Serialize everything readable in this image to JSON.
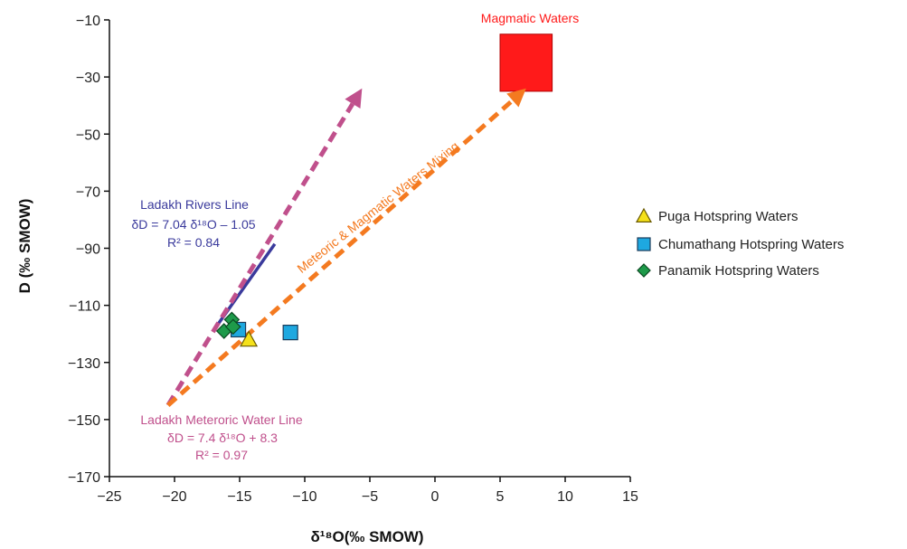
{
  "chart_data": {
    "type": "scatter",
    "xlabel": "δ¹⁸O(‰ SMOW)",
    "ylabel": "D (‰ SMOW)",
    "xlim": [
      -25,
      15
    ],
    "ylim": [
      -170,
      -10
    ],
    "xticks": [
      -25,
      -20,
      -15,
      -10,
      -5,
      0,
      5,
      10,
      15
    ],
    "yticks": [
      -10,
      -30,
      -50,
      -70,
      -90,
      -110,
      -130,
      -150,
      -170
    ],
    "grid": false,
    "legend_position": "right",
    "series": [
      {
        "name": "Puga Hotspring Waters",
        "marker": "triangle",
        "color": "#f5e11a",
        "points": [
          [
            -14.3,
            -122.0
          ]
        ]
      },
      {
        "name": "Chumathang Hotspring Waters",
        "marker": "square",
        "color": "#1ea8e0",
        "points": [
          [
            -15.1,
            -118.5
          ],
          [
            -11.1,
            -119.5
          ]
        ]
      },
      {
        "name": "Panamik Hotspring Waters",
        "marker": "diamond",
        "color": "#1e9a4a",
        "points": [
          [
            -15.6,
            -115.0
          ],
          [
            -16.2,
            -119.0
          ],
          [
            -15.5,
            -117.5
          ]
        ]
      }
    ],
    "arrows": [
      {
        "label": "Ladakh Meteroric Water Line",
        "color": "#c0508c",
        "from": [
          -20.5,
          -145
        ],
        "to": [
          -5.6,
          -34
        ]
      },
      {
        "label": "Meteoric & Magmatic Waters Mixing",
        "color": "#f47a20",
        "from": [
          -20.5,
          -145
        ],
        "to": [
          7.0,
          -34
        ]
      }
    ],
    "regression_segment": {
      "color": "#3a3a9c",
      "from": [
        -16.8,
        -117.5
      ],
      "to": [
        -12.3,
        -88.5
      ]
    },
    "magmatic_box": {
      "label": "Magmatic Waters",
      "color": "#ff1a1a",
      "x": [
        5,
        9
      ],
      "y": [
        -35,
        -15
      ]
    },
    "annotations": {
      "rivers_line": {
        "lines": [
          "Ladakh Rivers Line",
          "δD = 7.04 δ¹⁸O – 1.05",
          "R² = 0.84"
        ],
        "color": "#3a3a9c"
      },
      "meteoric_line": {
        "lines": [
          "Ladakh Meteroric Water Line",
          "δD = 7.4 δ¹⁸O + 8.3",
          "R² = 0.97"
        ],
        "color": "#c0508c"
      },
      "mixing_label": {
        "text": "Meteoric & Magmatic Waters Mixing",
        "color": "#f47a20"
      },
      "magmatic_label": {
        "text": "Magmatic Waters",
        "color": "#ff1a1a"
      }
    }
  }
}
